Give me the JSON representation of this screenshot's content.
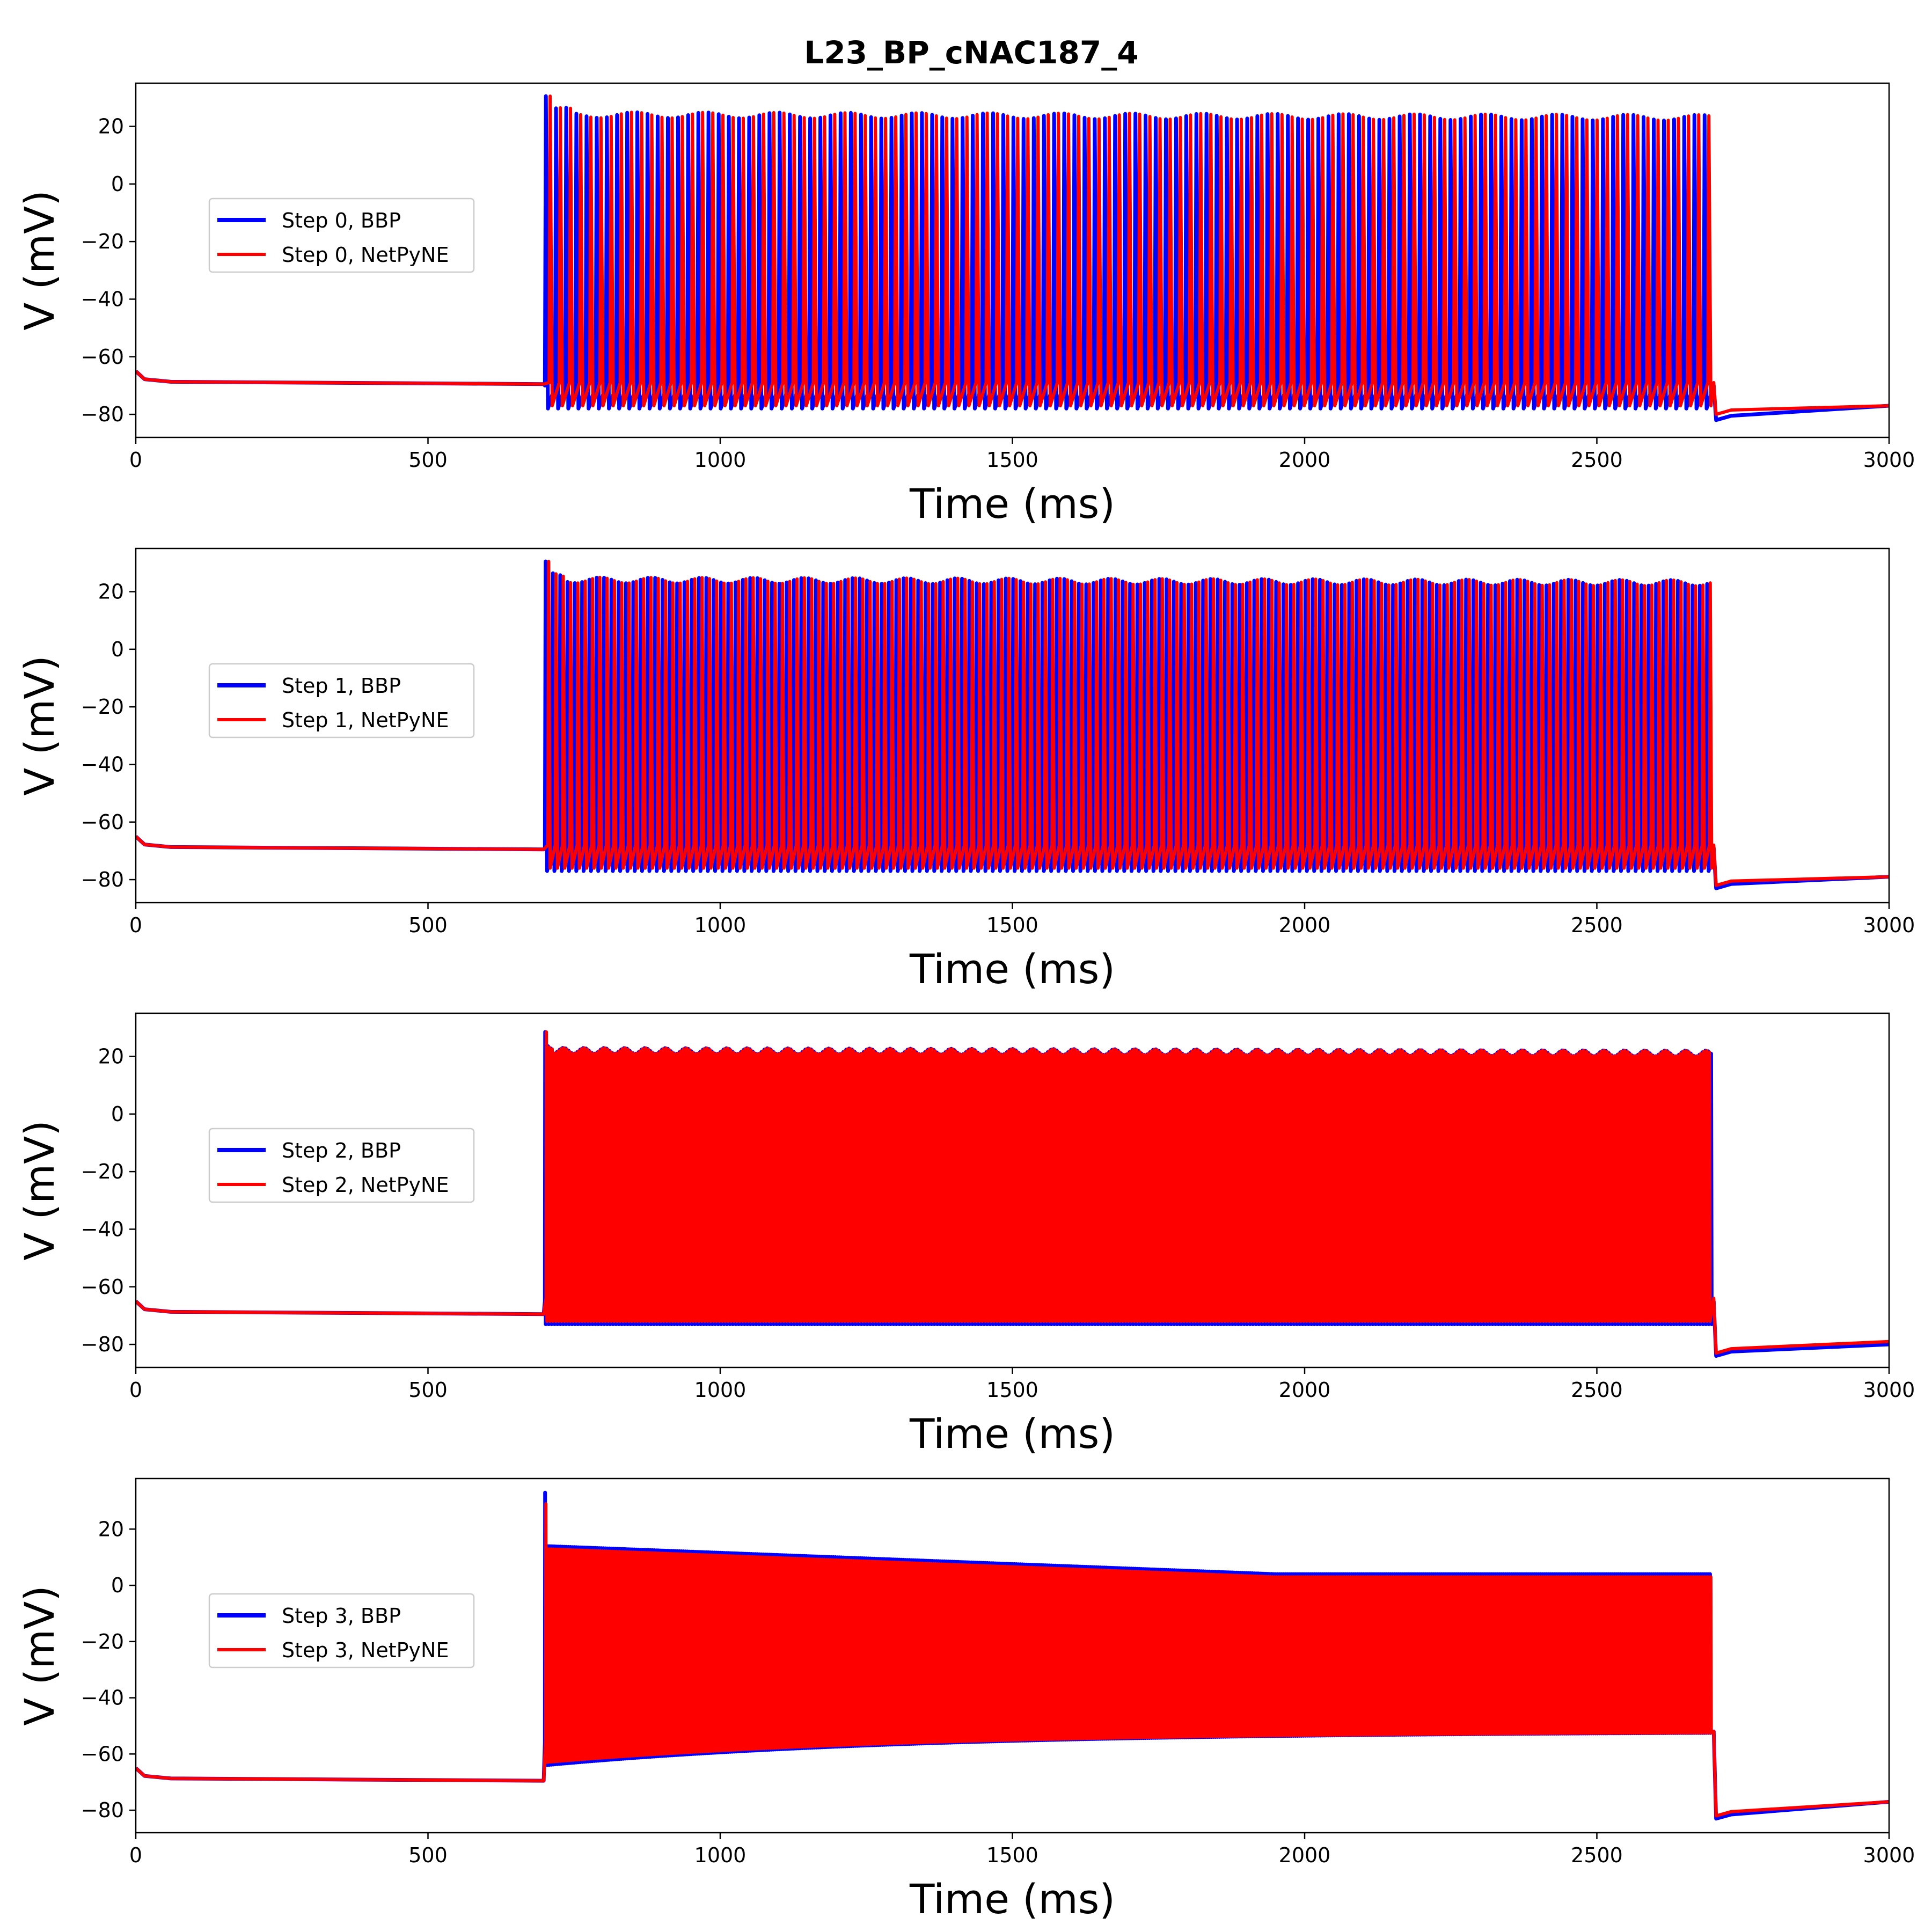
{
  "title": "L23_BP_cNAC187_4",
  "chart_data": [
    {
      "type": "line",
      "xlabel": "Time (ms)",
      "ylabel": "V (mV)",
      "xlim": [
        0,
        3000
      ],
      "ylim": [
        -88,
        35
      ],
      "xticks": [
        0,
        500,
        1000,
        1500,
        2000,
        2500,
        3000
      ],
      "yticks": [
        -80,
        -60,
        -40,
        -20,
        0,
        20
      ],
      "legend_position": "center-left",
      "stim_onset_ms": 700,
      "stim_offset_ms": 2700,
      "series": [
        {
          "name": "Step 0, BBP",
          "color": "#0000ff",
          "rest_mV": -69.0,
          "spike_peak_mV": 24,
          "trough_mV": -78,
          "spike_count": 115,
          "after_mV": -82,
          "end_mV": -77
        },
        {
          "name": "Step 0, NetPyNE",
          "color": "#ff0000",
          "rest_mV": -69.0,
          "spike_peak_mV": 24,
          "trough_mV": -77,
          "spike_count": 115,
          "after_mV": -80,
          "end_mV": -77
        }
      ]
    },
    {
      "type": "line",
      "xlabel": "Time (ms)",
      "ylabel": "V (mV)",
      "xlim": [
        0,
        3000
      ],
      "ylim": [
        -88,
        35
      ],
      "xticks": [
        0,
        500,
        1000,
        1500,
        2000,
        2500,
        3000
      ],
      "yticks": [
        -80,
        -60,
        -40,
        -20,
        0,
        20
      ],
      "legend_position": "center-left",
      "stim_onset_ms": 700,
      "stim_offset_ms": 2700,
      "series": [
        {
          "name": "Step 1, BBP",
          "color": "#0000ff",
          "rest_mV": -69.0,
          "spike_peak_mV": 24,
          "trough_mV": -77,
          "spike_count": 160,
          "after_mV": -83,
          "end_mV": -79
        },
        {
          "name": "Step 1, NetPyNE",
          "color": "#ff0000",
          "rest_mV": -69.0,
          "spike_peak_mV": 24,
          "trough_mV": -76,
          "spike_count": 160,
          "after_mV": -82,
          "end_mV": -79
        }
      ]
    },
    {
      "type": "line",
      "xlabel": "Time (ms)",
      "ylabel": "V (mV)",
      "xlim": [
        0,
        3000
      ],
      "ylim": [
        -88,
        35
      ],
      "xticks": [
        0,
        500,
        1000,
        1500,
        2000,
        2500,
        3000
      ],
      "yticks": [
        -80,
        -60,
        -40,
        -20,
        0,
        20
      ],
      "legend_position": "center-left",
      "stim_onset_ms": 700,
      "stim_offset_ms": 2700,
      "series": [
        {
          "name": "Step 2, BBP",
          "color": "#0000ff",
          "rest_mV": -69.0,
          "spike_peak_mV": 22,
          "trough_mV": -73,
          "spike_count": 400,
          "after_mV": -84,
          "end_mV": -80
        },
        {
          "name": "Step 2, NetPyNE",
          "color": "#ff0000",
          "rest_mV": -69.0,
          "spike_peak_mV": 22,
          "trough_mV": -72,
          "spike_count": 400,
          "after_mV": -83,
          "end_mV": -79
        }
      ]
    },
    {
      "type": "line",
      "xlabel": "Time (ms)",
      "ylabel": "V (mV)",
      "xlim": [
        0,
        3000
      ],
      "ylim": [
        -88,
        38
      ],
      "xticks": [
        0,
        500,
        1000,
        1500,
        2000,
        2500,
        3000
      ],
      "yticks": [
        -80,
        -60,
        -40,
        -20,
        0,
        20
      ],
      "legend_position": "center-left",
      "stim_onset_ms": 700,
      "stim_offset_ms": 2700,
      "series": [
        {
          "name": "Step 3, BBP",
          "color": "#0000ff",
          "rest_mV": -69.0,
          "first_peak_mV": 33,
          "spike_peak_start_mV": 14,
          "spike_peak_end_mV": 4,
          "trough_start_mV": -64,
          "trough_end_mV": -52,
          "spike_count": 600,
          "after_mV": -83,
          "end_mV": -77
        },
        {
          "name": "Step 3, NetPyNE",
          "color": "#ff0000",
          "rest_mV": -69.0,
          "first_peak_mV": 29,
          "spike_peak_start_mV": 13,
          "spike_peak_end_mV": 3,
          "trough_start_mV": -63,
          "trough_end_mV": -52,
          "spike_count": 600,
          "after_mV": -82,
          "end_mV": -77
        }
      ]
    }
  ]
}
